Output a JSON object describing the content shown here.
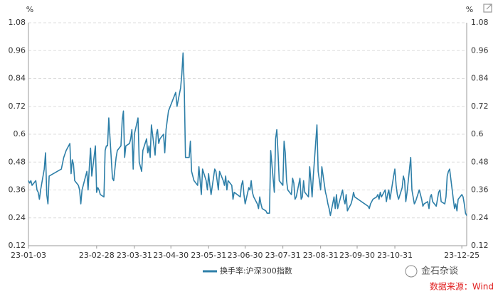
{
  "chart_data": {
    "type": "line",
    "y_unit": "%",
    "y2_unit": "%",
    "x": [
      "23-01-03",
      "23-01-04",
      "23-01-05",
      "23-01-06",
      "23-01-09",
      "23-01-10",
      "23-01-11",
      "23-01-12",
      "23-01-13",
      "23-01-16",
      "23-01-17",
      "23-01-18",
      "23-01-19",
      "23-01-20",
      "23-01-30",
      "23-02-01",
      "23-02-03",
      "23-02-06",
      "23-02-07",
      "23-02-08",
      "23-02-09",
      "23-02-10",
      "23-02-13",
      "23-02-14",
      "23-02-15",
      "23-02-16",
      "23-02-17",
      "23-02-20",
      "23-02-21",
      "23-02-22",
      "23-02-23",
      "23-02-24",
      "23-02-27",
      "23-02-28",
      "23-03-01",
      "23-03-02",
      "23-03-03",
      "23-03-06",
      "23-03-07",
      "23-03-08",
      "23-03-09",
      "23-03-10",
      "23-03-13",
      "23-03-14",
      "23-03-15",
      "23-03-16",
      "23-03-17",
      "23-03-20",
      "23-03-21",
      "23-03-22",
      "23-03-23",
      "23-03-24",
      "23-03-27",
      "23-03-28",
      "23-03-29",
      "23-03-30",
      "23-03-31",
      "23-04-03",
      "23-04-04",
      "23-04-06",
      "23-04-07",
      "23-04-10",
      "23-04-11",
      "23-04-12",
      "23-04-13",
      "23-04-14",
      "23-04-17",
      "23-04-18",
      "23-04-19",
      "23-04-20",
      "23-04-21",
      "23-04-24",
      "23-04-25",
      "23-04-26",
      "23-04-27",
      "23-04-28",
      "23-05-04",
      "23-05-05",
      "23-05-08",
      "23-05-09",
      "23-05-10",
      "23-05-11",
      "23-05-12",
      "23-05-15",
      "23-05-16",
      "23-05-17",
      "23-05-18",
      "23-05-19",
      "23-05-22",
      "23-05-23",
      "23-05-24",
      "23-05-25",
      "23-05-26",
      "23-05-29",
      "23-05-30",
      "23-05-31",
      "23-06-01",
      "23-06-02",
      "23-06-05",
      "23-06-06",
      "23-06-07",
      "23-06-08",
      "23-06-09",
      "23-06-12",
      "23-06-13",
      "23-06-14",
      "23-06-15",
      "23-06-16",
      "23-06-19",
      "23-06-20",
      "23-06-21",
      "23-06-26",
      "23-06-27",
      "23-06-28",
      "23-06-29",
      "23-06-30",
      "23-07-03",
      "23-07-04",
      "23-07-05",
      "23-07-06",
      "23-07-07",
      "23-07-10",
      "23-07-11",
      "23-07-12",
      "23-07-13",
      "23-07-14",
      "23-07-17",
      "23-07-18",
      "23-07-19",
      "23-07-20",
      "23-07-21",
      "23-07-24",
      "23-07-25",
      "23-07-26",
      "23-07-27",
      "23-07-28",
      "23-07-31",
      "23-08-01",
      "23-08-02",
      "23-08-03",
      "23-08-04",
      "23-08-07",
      "23-08-08",
      "23-08-09",
      "23-08-10",
      "23-08-11",
      "23-08-14",
      "23-08-15",
      "23-08-16",
      "23-08-17",
      "23-08-18",
      "23-08-21",
      "23-08-22",
      "23-08-23",
      "23-08-24",
      "23-08-25",
      "23-08-28",
      "23-08-29",
      "23-08-30",
      "23-08-31",
      "23-09-01",
      "23-09-04",
      "23-09-05",
      "23-09-06",
      "23-09-07",
      "23-09-08",
      "23-09-11",
      "23-09-12",
      "23-09-13",
      "23-09-14",
      "23-09-15",
      "23-09-18",
      "23-09-19",
      "23-09-20",
      "23-09-21",
      "23-09-22",
      "23-09-25",
      "23-09-26",
      "23-09-27",
      "23-09-28",
      "23-10-09",
      "23-10-10",
      "23-10-11",
      "23-10-12",
      "23-10-13",
      "23-10-16",
      "23-10-17",
      "23-10-18",
      "23-10-19",
      "23-10-20",
      "23-10-23",
      "23-10-24",
      "23-10-25",
      "23-10-26",
      "23-10-27",
      "23-10-30",
      "23-10-31",
      "23-11-01",
      "23-11-02",
      "23-11-03",
      "23-11-06",
      "23-11-07",
      "23-11-08",
      "23-11-09",
      "23-11-10",
      "23-11-13",
      "23-11-14",
      "23-11-15",
      "23-11-16",
      "23-11-17",
      "23-11-20",
      "23-11-21",
      "23-11-22",
      "23-11-23",
      "23-11-24",
      "23-11-27",
      "23-11-28",
      "23-11-29",
      "23-11-30",
      "23-12-01",
      "23-12-04",
      "23-12-05",
      "23-12-06",
      "23-12-07",
      "23-12-08",
      "23-12-11",
      "23-12-12",
      "23-12-13",
      "23-12-14",
      "23-12-15",
      "23-12-18",
      "23-12-19",
      "23-12-20",
      "23-12-21",
      "23-12-22",
      "23-12-25",
      "23-12-26",
      "23-12-27",
      "23-12-28",
      "23-12-29"
    ],
    "series": [
      {
        "name": "换手率:沪深300指数",
        "color": "#2e7fa8",
        "values": [
          0.4,
          0.39,
          0.4,
          0.38,
          0.4,
          0.36,
          0.35,
          0.32,
          0.36,
          0.45,
          0.52,
          0.34,
          0.3,
          0.42,
          0.45,
          0.5,
          0.53,
          0.56,
          0.43,
          0.49,
          0.47,
          0.4,
          0.38,
          0.36,
          0.3,
          0.36,
          0.38,
          0.44,
          0.36,
          0.46,
          0.54,
          0.42,
          0.55,
          0.35,
          0.37,
          0.36,
          0.34,
          0.33,
          0.53,
          0.55,
          0.55,
          0.67,
          0.41,
          0.4,
          0.45,
          0.5,
          0.53,
          0.55,
          0.66,
          0.7,
          0.5,
          0.55,
          0.56,
          0.58,
          0.62,
          0.45,
          0.6,
          0.67,
          0.48,
          0.44,
          0.53,
          0.58,
          0.52,
          0.55,
          0.5,
          0.64,
          0.51,
          0.6,
          0.62,
          0.56,
          0.58,
          0.6,
          0.52,
          0.62,
          0.66,
          0.7,
          0.78,
          0.72,
          0.8,
          0.86,
          0.95,
          0.8,
          0.5,
          0.5,
          0.57,
          0.44,
          0.42,
          0.4,
          0.38,
          0.46,
          0.4,
          0.34,
          0.45,
          0.4,
          0.36,
          0.43,
          0.38,
          0.34,
          0.45,
          0.44,
          0.4,
          0.36,
          0.44,
          0.4,
          0.38,
          0.42,
          0.36,
          0.4,
          0.38,
          0.32,
          0.35,
          0.33,
          0.38,
          0.4,
          0.34,
          0.3,
          0.37,
          0.36,
          0.4,
          0.35,
          0.33,
          0.3,
          0.28,
          0.33,
          0.3,
          0.28,
          0.27,
          0.26,
          0.26,
          0.26,
          0.53,
          0.35,
          0.58,
          0.62,
          0.52,
          0.4,
          0.38,
          0.57,
          0.52,
          0.4,
          0.36,
          0.34,
          0.41,
          0.39,
          0.32,
          0.33,
          0.41,
          0.32,
          0.33,
          0.4,
          0.35,
          0.33,
          0.46,
          0.4,
          0.33,
          0.42,
          0.64,
          0.44,
          0.4,
          0.36,
          0.46,
          0.35,
          0.33,
          0.3,
          0.28,
          0.25,
          0.33,
          0.28,
          0.34,
          0.28,
          0.3,
          0.36,
          0.32,
          0.3,
          0.34,
          0.27,
          0.3,
          0.32,
          0.35,
          0.33,
          0.29,
          0.28,
          0.3,
          0.31,
          0.32,
          0.33,
          0.34,
          0.32,
          0.35,
          0.33,
          0.36,
          0.31,
          0.34,
          0.36,
          0.32,
          0.42,
          0.45,
          0.38,
          0.34,
          0.32,
          0.37,
          0.42,
          0.4,
          0.31,
          0.35,
          0.5,
          0.36,
          0.33,
          0.3,
          0.31,
          0.36,
          0.34,
          0.32,
          0.29,
          0.3,
          0.31,
          0.28,
          0.33,
          0.34,
          0.31,
          0.29,
          0.32,
          0.35,
          0.36,
          0.31,
          0.3,
          0.33,
          0.42,
          0.44,
          0.45,
          0.32,
          0.28,
          0.3,
          0.27,
          0.32,
          0.34,
          0.33,
          0.3,
          0.26,
          0.25
        ]
      }
    ],
    "xlim": [
      "23-01-03",
      "23-12-29"
    ],
    "xticks": [
      "23-01-03",
      "23-02-28",
      "23-03-31",
      "23-04-30",
      "23-05-31",
      "23-06-30",
      "23-07-31",
      "23-08-31",
      "23-09-30",
      "23-10-31",
      "23-12-25"
    ],
    "ylim": [
      0.12,
      1.08
    ],
    "yticks": [
      0.12,
      0.24,
      0.36,
      0.48,
      0.6,
      0.72,
      0.84,
      0.96,
      1.08
    ],
    "y2lim": [
      0.12,
      1.08
    ],
    "y2ticks": [
      0.12,
      0.24,
      0.36,
      0.48,
      0.6,
      0.72,
      0.84,
      0.96,
      1.08
    ],
    "grid": true,
    "legend": "bottom",
    "watermark": "金石杂谈",
    "source": "数据来源：Wind"
  }
}
